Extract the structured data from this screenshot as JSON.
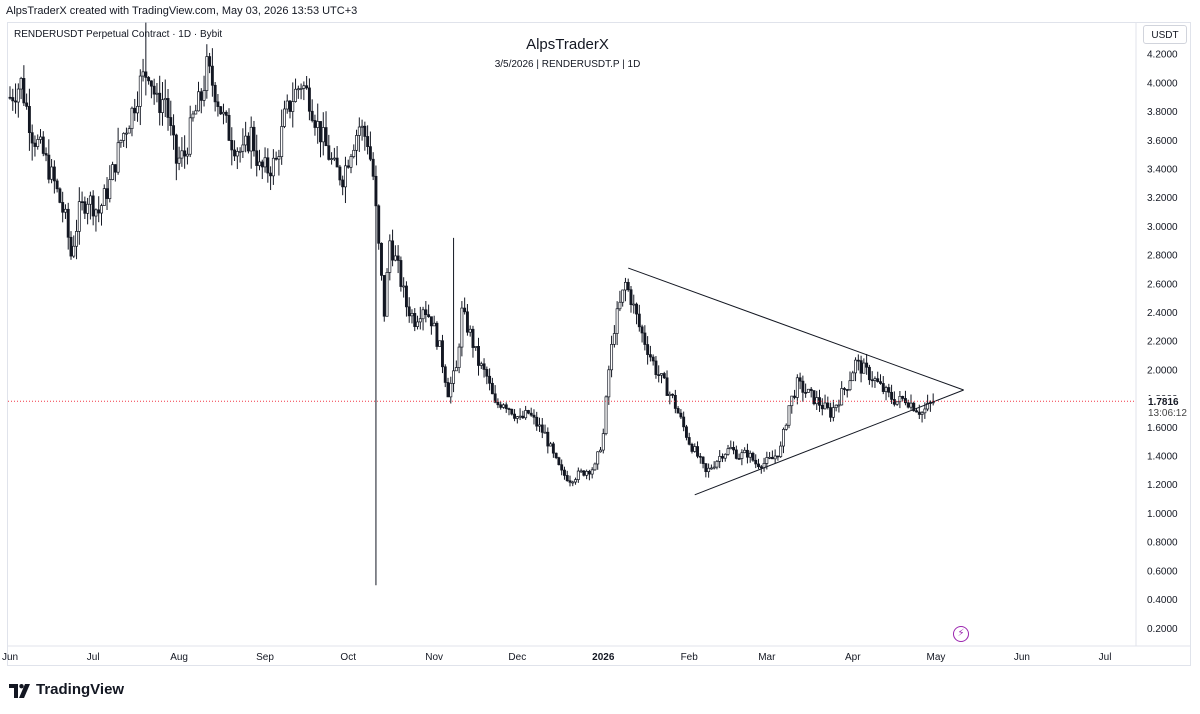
{
  "header": {
    "attribution": "AlpsTraderX created with TradingView.com, May 03, 2026 13:53 UTC+3"
  },
  "symbol_info": "RENDERUSDT Perpetual Contract · 1D · Bybit",
  "currency_button": "USDT",
  "last_price": {
    "value": "1.7816",
    "countdown": "13:06:12",
    "line_color": "#f23645"
  },
  "branding": {
    "name": "TradingView"
  },
  "colors": {
    "candles": "#131722",
    "grid": "#f0f3fa",
    "axis_text": "#131722",
    "accent_icon": "#9c27b0"
  },
  "icons": {
    "replay": "lightning-bolt-icon",
    "logo": "tradingview-logo-icon"
  },
  "chart_data": {
    "type": "candlestick",
    "title": "AlpsTraderX",
    "subtitle": "3/5/2026 | RENDERUSDT.P | 1D",
    "ylim": [
      0.0764,
      4.4244
    ],
    "y_ticks": [
      "4.2000",
      "4.0000",
      "3.8000",
      "3.6000",
      "3.4000",
      "3.2000",
      "3.0000",
      "2.8000",
      "2.6000",
      "2.4000",
      "2.2000",
      "2.0000",
      "1.8000",
      "1.6000",
      "1.4000",
      "1.2000",
      "1.0000",
      "0.8000",
      "0.6000",
      "0.4000",
      "0.2000"
    ],
    "x_ticks": [
      {
        "day": 0,
        "label": "Jun",
        "bold": false
      },
      {
        "day": 30,
        "label": "Jul",
        "bold": false
      },
      {
        "day": 61,
        "label": "Aug",
        "bold": false
      },
      {
        "day": 92,
        "label": "Sep",
        "bold": false
      },
      {
        "day": 122,
        "label": "Oct",
        "bold": false
      },
      {
        "day": 153,
        "label": "Nov",
        "bold": false
      },
      {
        "day": 183,
        "label": "Dec",
        "bold": false
      },
      {
        "day": 214,
        "label": "2026",
        "bold": true
      },
      {
        "day": 245,
        "label": "Feb",
        "bold": false
      },
      {
        "day": 273,
        "label": "Mar",
        "bold": false
      },
      {
        "day": 304,
        "label": "Apr",
        "bold": false
      },
      {
        "day": 334,
        "label": "May",
        "bold": false
      },
      {
        "day": 365,
        "label": "Jun",
        "bold": false
      },
      {
        "day": 395,
        "label": "Jul",
        "bold": false
      }
    ],
    "x_range_days": [
      0,
      404
    ],
    "grid": false,
    "last_price_line": 1.7816,
    "price_path": [
      [
        0,
        3.9
      ],
      [
        4,
        4.0
      ],
      [
        8,
        3.65
      ],
      [
        12,
        3.5
      ],
      [
        16,
        3.3
      ],
      [
        20,
        3.05
      ],
      [
        22,
        2.8
      ],
      [
        25,
        3.1
      ],
      [
        28,
        3.2
      ],
      [
        32,
        3.1
      ],
      [
        36,
        3.3
      ],
      [
        40,
        3.6
      ],
      [
        44,
        3.8
      ],
      [
        47,
        4.0
      ],
      [
        50,
        4.1
      ],
      [
        53,
        3.85
      ],
      [
        56,
        3.9
      ],
      [
        58,
        3.65
      ],
      [
        60,
        3.45
      ],
      [
        63,
        3.5
      ],
      [
        66,
        3.75
      ],
      [
        69,
        3.9
      ],
      [
        71,
        4.1
      ],
      [
        74,
        3.95
      ],
      [
        77,
        3.75
      ],
      [
        80,
        3.6
      ],
      [
        84,
        3.5
      ],
      [
        87,
        3.65
      ],
      [
        90,
        3.4
      ],
      [
        93,
        3.4
      ],
      [
        96,
        3.45
      ],
      [
        99,
        3.75
      ],
      [
        102,
        3.9
      ],
      [
        105,
        4.0
      ],
      [
        108,
        3.9
      ],
      [
        111,
        3.7
      ],
      [
        114,
        3.55
      ],
      [
        117,
        3.4
      ],
      [
        120,
        3.35
      ],
      [
        123,
        3.55
      ],
      [
        126,
        3.7
      ],
      [
        129,
        3.6
      ],
      [
        131,
        3.35
      ],
      [
        133,
        2.85
      ],
      [
        135,
        2.4
      ],
      [
        137,
        2.9
      ],
      [
        140,
        2.7
      ],
      [
        143,
        2.45
      ],
      [
        146,
        2.35
      ],
      [
        149,
        2.45
      ],
      [
        152,
        2.35
      ],
      [
        155,
        2.15
      ],
      [
        158,
        1.85
      ],
      [
        161,
        2.0
      ],
      [
        163,
        2.4
      ],
      [
        166,
        2.25
      ],
      [
        169,
        2.05
      ],
      [
        172,
        1.95
      ],
      [
        175,
        1.75
      ],
      [
        178,
        1.78
      ],
      [
        181,
        1.72
      ],
      [
        184,
        1.65
      ],
      [
        187,
        1.7
      ],
      [
        190,
        1.62
      ],
      [
        193,
        1.55
      ],
      [
        196,
        1.4
      ],
      [
        199,
        1.28
      ],
      [
        202,
        1.24
      ],
      [
        205,
        1.27
      ],
      [
        208,
        1.3
      ],
      [
        211,
        1.32
      ],
      [
        214,
        1.55
      ],
      [
        216,
        2.0
      ],
      [
        218,
        2.3
      ],
      [
        220,
        2.45
      ],
      [
        222,
        2.6
      ],
      [
        224,
        2.5
      ],
      [
        227,
        2.3
      ],
      [
        230,
        2.15
      ],
      [
        233,
        2.0
      ],
      [
        236,
        1.9
      ],
      [
        239,
        1.8
      ],
      [
        242,
        1.65
      ],
      [
        245,
        1.5
      ],
      [
        248,
        1.4
      ],
      [
        251,
        1.28
      ],
      [
        254,
        1.35
      ],
      [
        257,
        1.42
      ],
      [
        260,
        1.45
      ],
      [
        263,
        1.4
      ],
      [
        266,
        1.42
      ],
      [
        269,
        1.35
      ],
      [
        272,
        1.35
      ],
      [
        275,
        1.38
      ],
      [
        278,
        1.45
      ],
      [
        281,
        1.75
      ],
      [
        284,
        1.9
      ],
      [
        287,
        1.85
      ],
      [
        290,
        1.8
      ],
      [
        293,
        1.75
      ],
      [
        296,
        1.7
      ],
      [
        299,
        1.8
      ],
      [
        302,
        1.9
      ],
      [
        305,
        2.05
      ],
      [
        308,
        2.0
      ],
      [
        311,
        1.95
      ],
      [
        314,
        1.88
      ],
      [
        317,
        1.82
      ],
      [
        320,
        1.78
      ],
      [
        323,
        1.8
      ],
      [
        326,
        1.75
      ],
      [
        329,
        1.7
      ],
      [
        331,
        1.74
      ],
      [
        333,
        1.78
      ]
    ],
    "trendlines": [
      {
        "from": [
          223,
          2.71
        ],
        "to": [
          344,
          1.86
        ]
      },
      {
        "from": [
          247,
          1.13
        ],
        "to": [
          344,
          1.86
        ]
      }
    ],
    "series": [
      {
        "name": "",
        "kind": "ohlc",
        "source": "daily candles"
      }
    ]
  }
}
